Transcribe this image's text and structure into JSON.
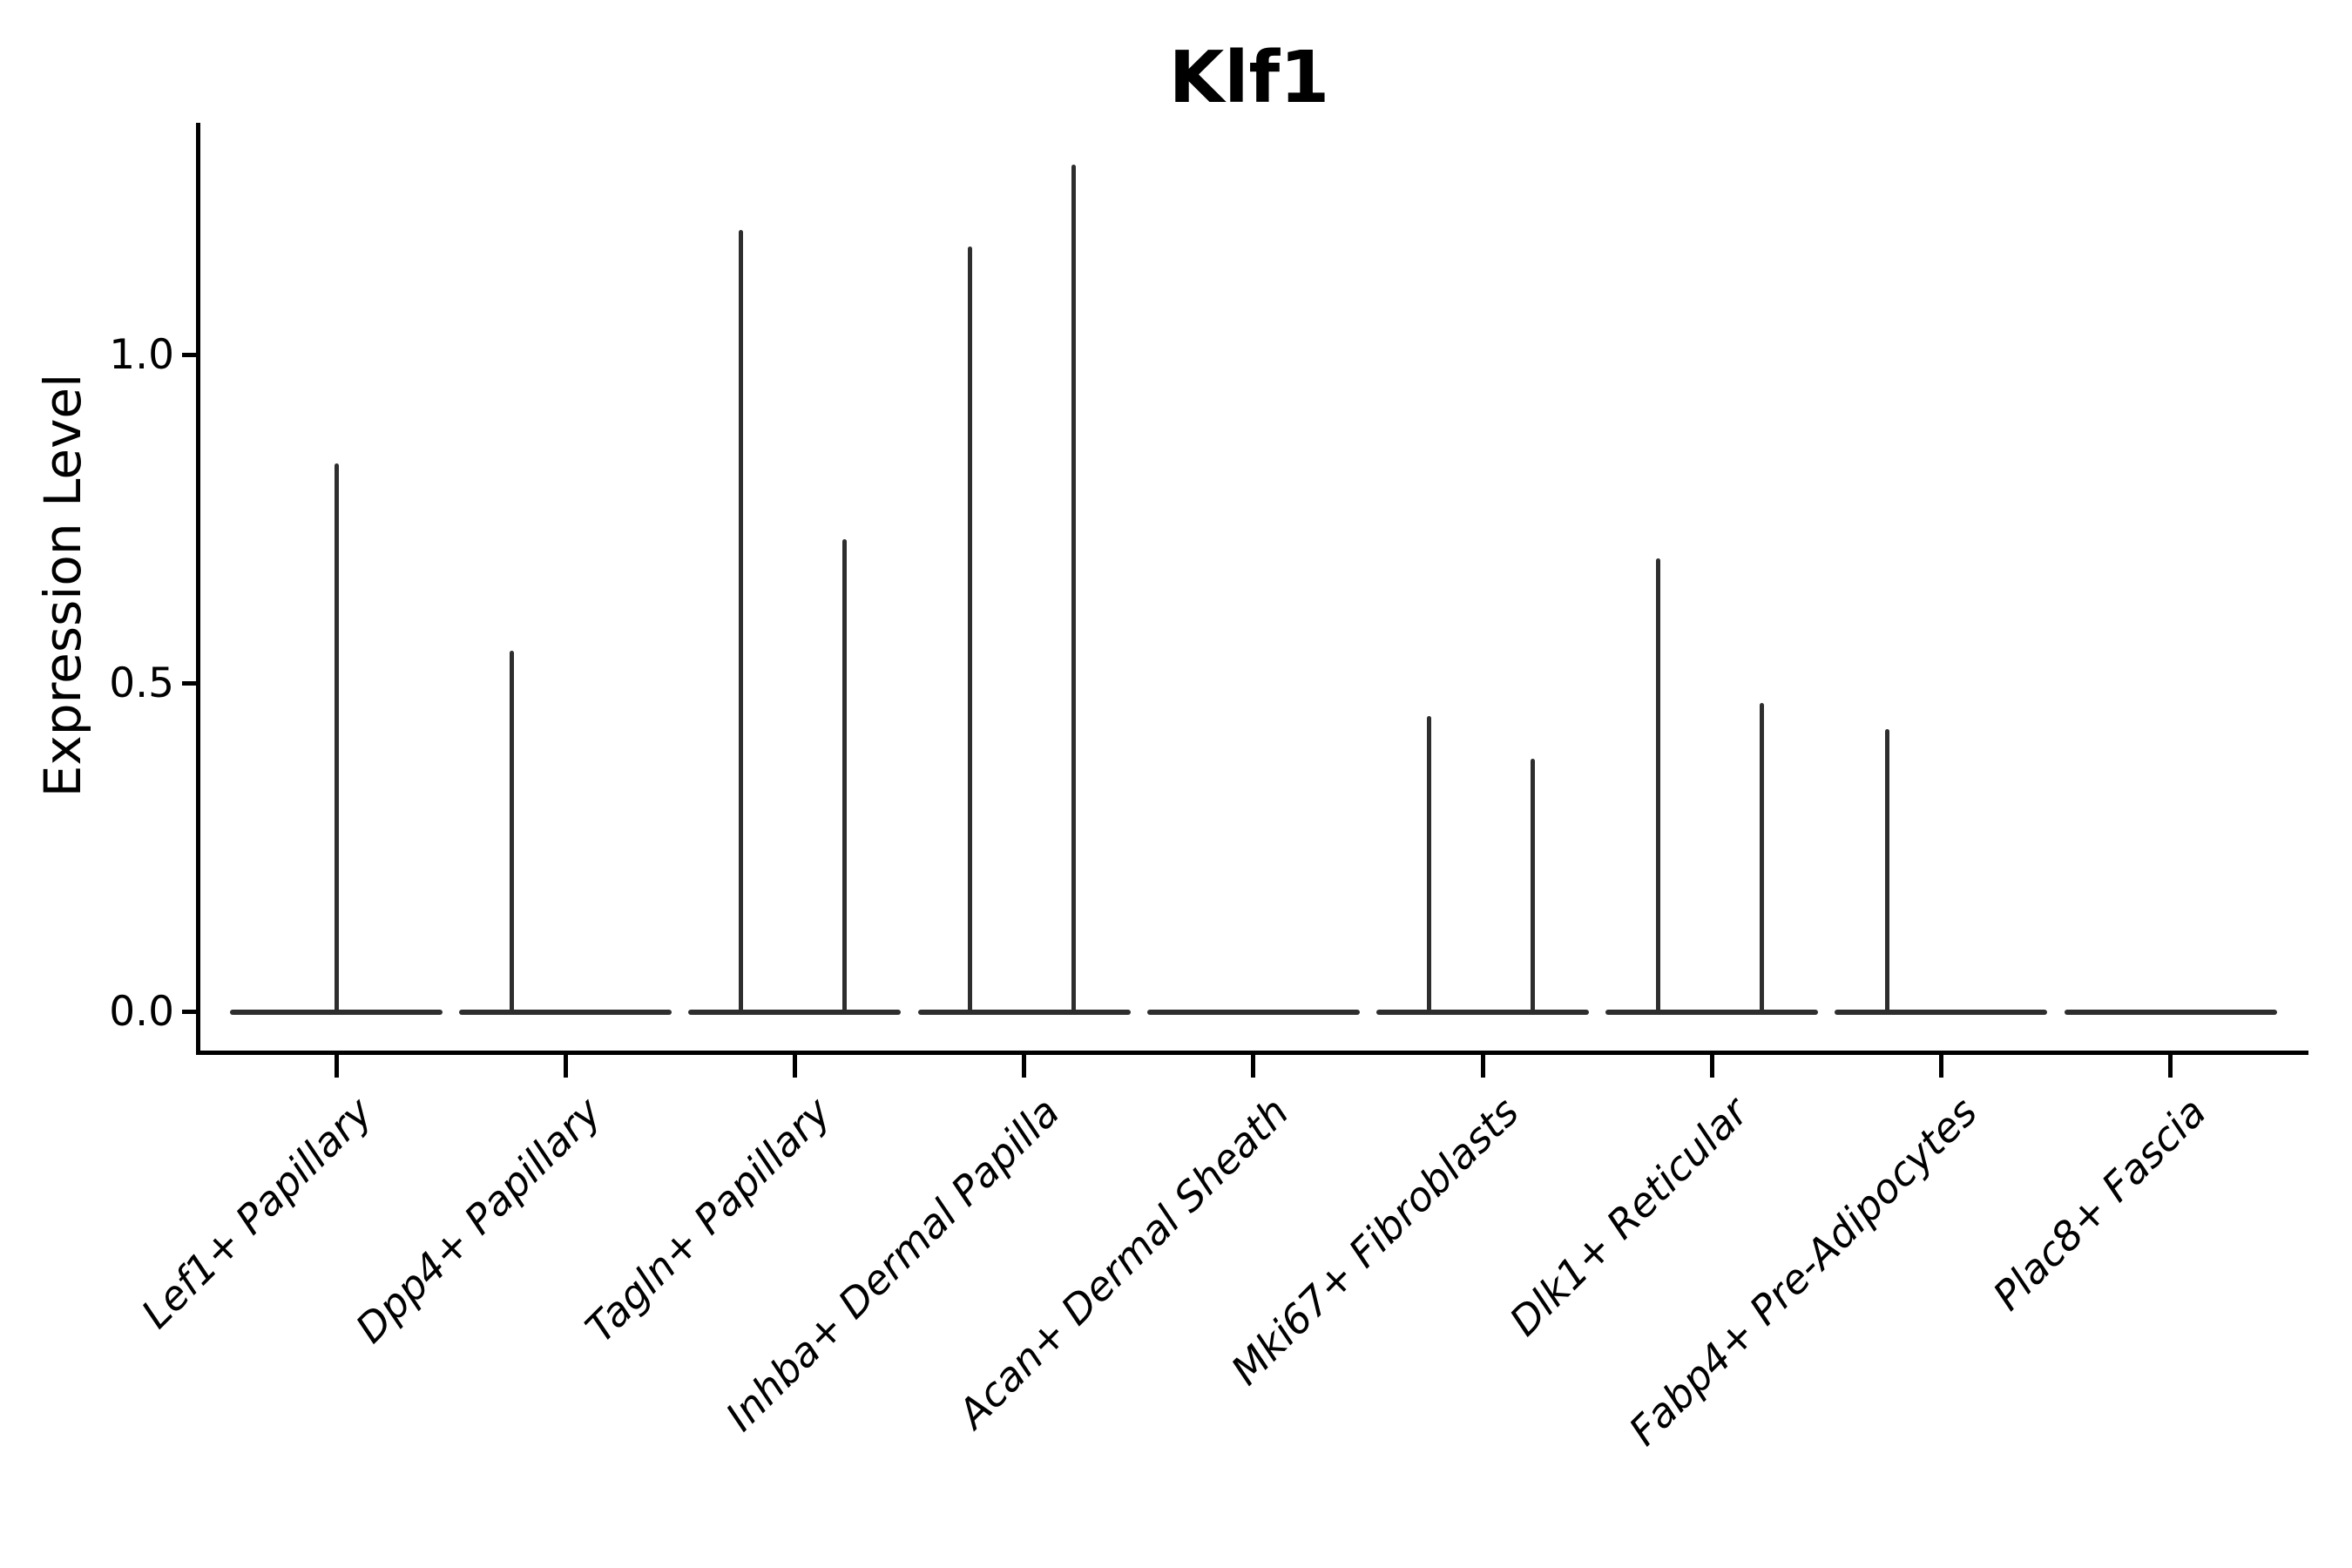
{
  "title": "Klf1",
  "axes": {
    "ylabel": "Expression Level",
    "ytick_labels": [
      "0.0",
      "0.5",
      "1.0"
    ]
  },
  "chart_data": {
    "type": "violin",
    "title": "Klf1",
    "xlabel": "",
    "ylabel": "Expression Level",
    "ylim": [
      -0.06,
      1.35
    ],
    "yticks": [
      0.0,
      0.5,
      1.0
    ],
    "grid": false,
    "legend": null,
    "background": "#ffffff",
    "colors": {
      "violin_line": "#2e2e2e",
      "spine": "#000000",
      "text": "#000000"
    },
    "categories": [
      "Lef1+ Papillary",
      "Dpp4+ Papillary",
      "Tagln+ Papillary",
      "Inhba+ Dermal Papilla",
      "Acan+ Dermal Sheath",
      "Mki67+ Fibroblasts",
      "Dlk1+ Reticular",
      "Fabp4+ Pre-Adipocytes",
      "Plac8+ Fascia"
    ],
    "violins": [
      {
        "category": "Lef1+ Papillary",
        "baseline_value": 0.0,
        "spikes": [
          {
            "position": "center",
            "peak": 0.835
          }
        ]
      },
      {
        "category": "Dpp4+ Papillary",
        "baseline_value": 0.0,
        "spikes": [
          {
            "position": "left",
            "peak": 0.55
          }
        ]
      },
      {
        "category": "Tagln+ Papillary",
        "baseline_value": 0.0,
        "spikes": [
          {
            "position": "left",
            "peak": 1.19
          },
          {
            "position": "right",
            "peak": 0.72
          }
        ]
      },
      {
        "category": "Inhba+ Dermal Papilla",
        "baseline_value": 0.0,
        "spikes": [
          {
            "position": "left",
            "peak": 1.165
          },
          {
            "position": "right",
            "peak": 1.29
          }
        ]
      },
      {
        "category": "Acan+ Dermal Sheath",
        "baseline_value": 0.0,
        "spikes": []
      },
      {
        "category": "Mki67+ Fibroblasts",
        "baseline_value": 0.0,
        "spikes": [
          {
            "position": "left",
            "peak": 0.45
          },
          {
            "position": "right",
            "peak": 0.385
          }
        ]
      },
      {
        "category": "Dlk1+ Reticular",
        "baseline_value": 0.0,
        "spikes": [
          {
            "position": "left",
            "peak": 0.69
          },
          {
            "position": "right",
            "peak": 0.47
          }
        ]
      },
      {
        "category": "Fabp4+ Pre-Adipocytes",
        "baseline_value": 0.0,
        "spikes": [
          {
            "position": "left",
            "peak": 0.43
          }
        ]
      },
      {
        "category": "Plac8+ Fascia",
        "baseline_value": 0.0,
        "spikes": []
      }
    ]
  }
}
